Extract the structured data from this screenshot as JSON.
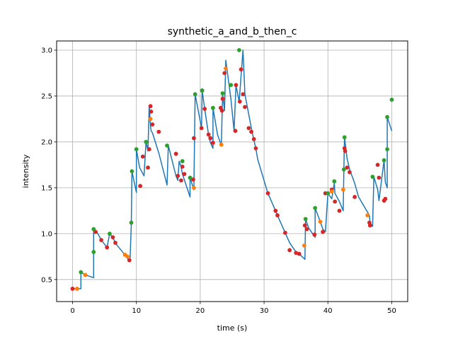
{
  "chart_data": {
    "type": "line",
    "title": "synthetic_a_and_b_then_c",
    "xlabel": "time (s)",
    "ylabel": "intensity",
    "xlim": [
      -2.5,
      52.5
    ],
    "ylim": [
      0.26,
      3.1
    ],
    "xticks": [
      0,
      10,
      20,
      30,
      40,
      50
    ],
    "yticks": [
      0.5,
      1.0,
      1.5,
      2.0,
      2.5,
      3.0
    ],
    "xtick_labels": [
      "0",
      "10",
      "20",
      "30",
      "40",
      "50"
    ],
    "ytick_labels": [
      "0.5",
      "1.0",
      "1.5",
      "2.0",
      "2.5",
      "3.0"
    ],
    "grid": true,
    "colors": {
      "line": "#1f77b4",
      "a": "#d62728",
      "b": "#ff7f0e",
      "c": "#2ca02c"
    },
    "line": {
      "x": [
        0,
        0.7,
        1.3,
        1.3,
        2.0,
        3.3,
        3.3,
        3.3,
        3.8,
        4.5,
        5.4,
        5.8,
        6.3,
        6.7,
        7.0,
        8.2,
        8.6,
        9.0,
        9.2,
        9.3,
        10.0,
        10.0,
        10.5,
        11.2,
        11.5,
        11.8,
        12.0,
        12.2,
        12.3,
        12.5,
        13.5,
        14.8,
        15.0,
        16.2,
        16.5,
        16.7,
        17.0,
        17.2,
        18.4,
        18.4,
        18.9,
        19.0,
        19.2,
        20.2,
        20.3,
        20.7,
        21.3,
        21.6,
        22.0,
        22.0,
        22.7,
        23.3,
        23.5,
        23.8,
        24.0,
        24.8,
        25.3,
        25.6,
        26.1,
        26.7,
        27.0,
        28.0,
        28.4,
        28.7,
        29.0,
        30.6,
        31.8,
        32.1,
        33.3,
        34.0,
        35.0,
        35.5,
        36.4,
        36.5,
        37.0,
        38.0,
        38.0,
        38.8,
        39.2,
        39.6,
        40.0,
        40.6,
        41.0,
        41.1,
        41.8,
        42.4,
        42.5,
        42.6,
        43.0,
        43.4,
        44.2,
        44.8,
        46.5,
        46.6,
        47.0,
        47.2,
        47.8,
        48.0,
        48.8,
        49.0,
        49.3,
        49.3,
        50.0,
        50.0
      ],
      "y": [
        0.4,
        0.4,
        0.4,
        0.58,
        0.55,
        0.52,
        0.8,
        1.05,
        1.02,
        0.93,
        0.85,
        1.0,
        0.96,
        0.9,
        0.87,
        0.77,
        0.73,
        0.71,
        1.1,
        1.68,
        1.45,
        1.92,
        1.72,
        1.63,
        2.0,
        1.9,
        2.4,
        2.18,
        2.12,
        2.1,
        1.88,
        1.53,
        1.96,
        1.63,
        1.58,
        1.79,
        1.73,
        1.65,
        1.4,
        1.61,
        1.5,
        1.48,
        2.52,
        2.15,
        2.56,
        2.36,
        2.08,
        1.99,
        1.93,
        2.37,
        2.08,
        1.96,
        2.53,
        2.34,
        2.89,
        2.47,
        2.12,
        2.62,
        2.44,
        3.0,
        2.52,
        2.15,
        2.02,
        1.93,
        1.81,
        1.44,
        1.25,
        1.2,
        1.01,
        0.9,
        0.8,
        0.78,
        0.72,
        1.16,
        1.06,
        0.96,
        1.28,
        1.13,
        1.05,
        1.02,
        1.44,
        1.38,
        1.55,
        1.44,
        1.35,
        1.25,
        1.7,
        2.05,
        1.82,
        1.7,
        1.55,
        1.4,
        1.2,
        1.12,
        1.08,
        1.62,
        1.48,
        1.36,
        1.8,
        1.56,
        1.5,
        2.27,
        2.12,
        2.12
      ]
    },
    "series": [
      {
        "key": "a",
        "x": [
          0,
          3.6,
          4.5,
          5.4,
          6.3,
          6.7,
          8.9,
          10.6,
          11.0,
          11.8,
          12.0,
          12.2,
          12.3,
          12.5,
          13.5,
          16.2,
          16.5,
          17.0,
          17.2,
          17.5,
          18.9,
          19.0,
          20.2,
          20.3,
          20.7,
          21.3,
          21.6,
          22.0,
          23.2,
          23.4,
          23.5,
          23.8,
          25.5,
          25.6,
          26.2,
          26.4,
          26.7,
          27.0,
          27.6,
          28.0,
          28.4,
          28.7,
          30.6,
          31.8,
          32.1,
          33.3,
          34.0,
          35.0,
          35.5,
          36.4,
          36.7,
          37.9,
          39.2,
          39.6,
          40.6,
          41.1,
          41.8,
          42.6,
          42.7,
          43.0,
          43.4,
          44.2,
          46.5,
          46.6,
          47.8,
          48.0,
          48.8,
          49.0
        ],
        "y": [
          0.4,
          1.02,
          0.93,
          0.85,
          0.96,
          0.9,
          0.71,
          1.52,
          1.84,
          1.72,
          1.92,
          2.39,
          2.33,
          2.19,
          2.11,
          1.87,
          1.63,
          1.58,
          1.73,
          1.65,
          1.59,
          2.04,
          2.15,
          2.56,
          2.36,
          2.08,
          2.04,
          1.99,
          2.37,
          2.34,
          2.47,
          2.75,
          2.12,
          2.62,
          2.44,
          2.79,
          2.52,
          2.38,
          2.15,
          2.11,
          2.03,
          1.93,
          1.44,
          1.25,
          1.2,
          1.01,
          0.82,
          0.79,
          0.78,
          1.09,
          1.05,
          0.99,
          1.02,
          1.44,
          1.48,
          1.35,
          1.25,
          1.93,
          1.9,
          1.72,
          1.67,
          1.4,
          1.12,
          1.09,
          1.75,
          1.61,
          1.36,
          1.38
        ]
      },
      {
        "key": "b",
        "x": [
          0.7,
          2.0,
          8.2,
          8.6,
          12.2,
          19.0,
          23.3,
          24.0,
          36.3,
          38.8,
          40.6,
          42.4,
          46.2
        ],
        "y": [
          0.4,
          0.55,
          0.77,
          0.75,
          2.25,
          1.5,
          1.97,
          2.8,
          0.87,
          1.13,
          1.46,
          1.48,
          1.2
        ]
      },
      {
        "key": "c",
        "x": [
          1.3,
          3.3,
          3.3,
          5.8,
          9.2,
          9.3,
          10.0,
          11.5,
          14.8,
          17.2,
          18.4,
          19.2,
          20.3,
          22.0,
          23.5,
          24.8,
          26.1,
          36.5,
          38.0,
          40.0,
          41.0,
          42.5,
          42.6,
          47.0,
          48.8,
          49.3,
          49.3,
          50.0
        ],
        "y": [
          0.58,
          0.8,
          1.05,
          1.0,
          1.12,
          1.68,
          1.92,
          2.0,
          1.96,
          1.79,
          1.61,
          2.52,
          2.56,
          2.37,
          2.53,
          2.62,
          3.0,
          1.16,
          1.28,
          1.44,
          1.57,
          1.7,
          2.05,
          1.62,
          1.8,
          1.92,
          2.27,
          2.46
        ]
      }
    ]
  }
}
